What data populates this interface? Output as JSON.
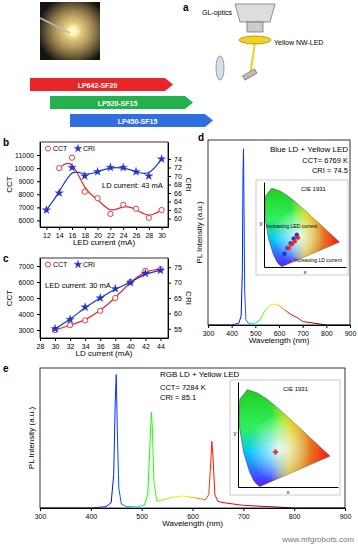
{
  "diagram": {
    "panel": "a",
    "optics": "GL-optics",
    "sample": "Yellow NW-LED",
    "lasers": [
      {
        "name": "LP642-SF20",
        "color": "#e8262a"
      },
      {
        "name": "LP520-SF15",
        "color": "#22b14c"
      },
      {
        "name": "LP450-SF15",
        "color": "#2f6fe0"
      }
    ]
  },
  "watermark": "www.mfgrobots.com",
  "chart_data": [
    {
      "panel": "b",
      "type": "line",
      "x_label": "LED current (mA)",
      "y_label": "CCT",
      "y2_label": "CRI",
      "xlim": [
        11,
        31
      ],
      "xticks": [
        12,
        14,
        16,
        18,
        20,
        22,
        24,
        26,
        28,
        30
      ],
      "ylim": [
        5500,
        12000
      ],
      "yticks": [
        6000,
        7000,
        8000,
        9000,
        10000,
        11000
      ],
      "y2lim": [
        58,
        78
      ],
      "y2ticks": [
        60,
        62,
        64,
        66,
        68,
        70,
        72,
        74
      ],
      "legend": "upper left",
      "annotations": [
        "LD current: 43 mA"
      ],
      "series": [
        {
          "name": "CCT",
          "color": "#e8262a",
          "marker": "circle",
          "x": [
            14,
            16,
            18,
            20,
            22,
            24,
            26,
            28,
            30
          ],
          "values": [
            10000,
            10800,
            8200,
            7700,
            6500,
            7200,
            6900,
            6200,
            6800
          ]
        },
        {
          "name": "CRI",
          "color": "#1f35c8",
          "marker": "star",
          "axis": "y2",
          "x": [
            12,
            14,
            16,
            18,
            20,
            22,
            24,
            26,
            28,
            30
          ],
          "values": [
            62,
            66,
            72,
            70,
            71,
            72,
            72,
            71,
            70,
            74
          ]
        }
      ]
    },
    {
      "panel": "c",
      "type": "line",
      "x_label": "LD current (mA)",
      "y_label": "CCT",
      "y2_label": "CRI",
      "xlim": [
        28,
        45
      ],
      "xticks": [
        28,
        30,
        32,
        34,
        36,
        38,
        40,
        42,
        44
      ],
      "ylim": [
        2500,
        7500
      ],
      "yticks": [
        3000,
        4000,
        5000,
        6000,
        7000
      ],
      "y2lim": [
        52,
        78
      ],
      "y2ticks": [
        55,
        60,
        65,
        70,
        75
      ],
      "legend": "upper left",
      "annotations": [
        "LED current: 30 mA"
      ],
      "series": [
        {
          "name": "CCT",
          "color": "#e8262a",
          "marker": "circle",
          "x": [
            30,
            32,
            34,
            36,
            38,
            40,
            42,
            44
          ],
          "values": [
            3000,
            3300,
            3600,
            4200,
            5000,
            6000,
            6700,
            6800
          ]
        },
        {
          "name": "CRI",
          "color": "#1f35c8",
          "marker": "star",
          "axis": "y2",
          "x": [
            30,
            32,
            34,
            36,
            38,
            40,
            42,
            44
          ],
          "values": [
            55,
            58,
            62,
            65,
            68,
            70,
            73,
            74
          ]
        }
      ]
    },
    {
      "panel": "d",
      "type": "line",
      "title": "Blue LD + Yellow LED",
      "x_label": "Wavelength (nm)",
      "y_label": "PL Intensity (a.u.)",
      "xlim": [
        300,
        900
      ],
      "xticks": [
        300,
        400,
        500,
        600,
        700,
        800,
        900
      ],
      "ylim": [
        0,
        1.05
      ],
      "tick_labels": "x",
      "annotations": [
        "CCT= 6769 K",
        "CRI = 74.5"
      ],
      "x": [
        300,
        400,
        430,
        440,
        445,
        448,
        450,
        452,
        455,
        460,
        470,
        500,
        520,
        540,
        560,
        580,
        600,
        620,
        650,
        680,
        700,
        750,
        800,
        900
      ],
      "values": [
        0,
        0,
        0.01,
        0.05,
        0.3,
        0.85,
        1.0,
        0.7,
        0.2,
        0.03,
        0.01,
        0.01,
        0.03,
        0.08,
        0.11,
        0.12,
        0.11,
        0.09,
        0.06,
        0.04,
        0.02,
        0.01,
        0,
        0
      ],
      "inset": {
        "title": "CIE 1931",
        "x_label": "x",
        "y_label": "y",
        "xlim": [
          0,
          0.8
        ],
        "ylim": [
          0,
          0.9
        ],
        "tick_labels": false,
        "annotations": [
          "Increasing LED current",
          "Increasing LD current"
        ],
        "series": [
          {
            "color": "#1f35c8",
            "marker": "circle",
            "x": [
              0.2,
              0.23,
              0.26,
              0.29,
              0.32
            ],
            "values": [
              0.14,
              0.2,
              0.25,
              0.3,
              0.34
            ]
          },
          {
            "color": "#e8262a",
            "marker": "circle",
            "x": [
              0.24,
              0.27,
              0.3,
              0.33
            ],
            "values": [
              0.2,
              0.24,
              0.27,
              0.31
            ]
          }
        ]
      }
    },
    {
      "panel": "e",
      "type": "line",
      "title": "RGB LD + Yellow LED",
      "x_label": "Wavelength (nm)",
      "y_label": "PL Intensity (a.u.)",
      "xlim": [
        300,
        900
      ],
      "xticks": [
        300,
        400,
        500,
        600,
        700,
        800,
        900
      ],
      "ylim": [
        0,
        1.05
      ],
      "tick_labels": "x",
      "annotations": [
        "CCT= 7284 K",
        "CRI = 85.1"
      ],
      "x": [
        300,
        400,
        430,
        440,
        445,
        448,
        450,
        452,
        455,
        460,
        470,
        490,
        505,
        512,
        516,
        519,
        521,
        524,
        530,
        540,
        560,
        580,
        600,
        615,
        625,
        632,
        636,
        638,
        640,
        644,
        650,
        660,
        680,
        700,
        750,
        800,
        900
      ],
      "values": [
        0,
        0,
        0.01,
        0.04,
        0.25,
        0.8,
        1.0,
        0.6,
        0.15,
        0.03,
        0.01,
        0.01,
        0.02,
        0.1,
        0.45,
        0.72,
        0.6,
        0.2,
        0.05,
        0.06,
        0.08,
        0.09,
        0.08,
        0.07,
        0.06,
        0.1,
        0.35,
        0.5,
        0.4,
        0.1,
        0.05,
        0.04,
        0.03,
        0.02,
        0.01,
        0,
        0
      ],
      "inset": {
        "title": "CIE 1931",
        "x_label": "x",
        "y_label": "y",
        "xlim": [
          0,
          0.8
        ],
        "ylim": [
          0,
          0.9
        ],
        "tick_labels": false,
        "series": [
          {
            "color": "#e8262a",
            "marker": "cross",
            "x": [
              0.3
            ],
            "values": [
              0.3
            ]
          }
        ]
      }
    }
  ]
}
